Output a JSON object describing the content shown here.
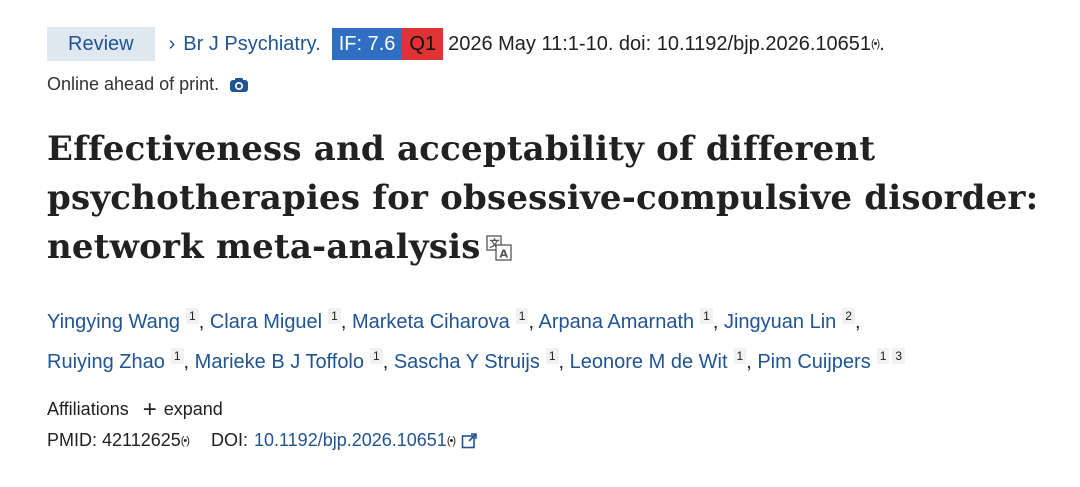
{
  "header": {
    "article_type": "Review",
    "journal": "Br J Psychiatry.",
    "impact_factor": "IF: 7.6",
    "quartile": "Q1",
    "citation": "2026 May 11:1-10. doi: 10.1192/bjp.2026.10651",
    "citation_end": ".",
    "online_status": "Online ahead of print.",
    "colors": {
      "if_badge": "#2f6fc1",
      "q_badge": "#e03434",
      "link": "#205493",
      "review_bg": "#dfe7f0"
    }
  },
  "title": "Effectiveness and acceptability of different psychotherapies for obsessive-compulsive disorder: network meta-analysis",
  "authors": [
    {
      "name": "Yingying Wang",
      "aff": "1"
    },
    {
      "name": "Clara Miguel",
      "aff": "1"
    },
    {
      "name": "Marketa Ciharova",
      "aff": "1"
    },
    {
      "name": "Arpana Amarnath",
      "aff": "1"
    },
    {
      "name": "Jingyuan Lin",
      "aff": "2"
    },
    {
      "name": "Ruiying Zhao",
      "aff": "1"
    },
    {
      "name": "Marieke B J Toffolo",
      "aff": "1"
    },
    {
      "name": "Sascha Y Struijs",
      "aff": "1"
    },
    {
      "name": "Leonore M de Wit",
      "aff": "1"
    },
    {
      "name": "Pim Cuijpers",
      "aff": "1",
      "aff2": "3"
    }
  ],
  "affiliations": {
    "label": "Affiliations",
    "expand": "expand"
  },
  "ids": {
    "pmid_label": "PMID:",
    "pmid": "42112625",
    "doi_label": "DOI:",
    "doi": "10.1192/bjp.2026.10651"
  },
  "icons": {
    "radio": "radio-waves-icon",
    "camera": "camera-icon",
    "translate": "translate-icon",
    "external": "external-link-icon"
  }
}
